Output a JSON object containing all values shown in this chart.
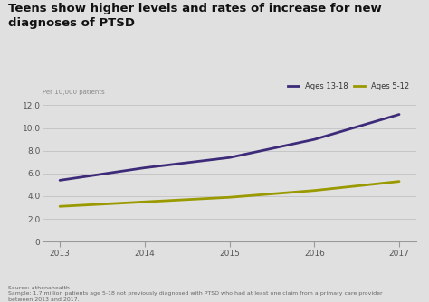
{
  "title": "Teens show higher levels and rates of increase for new\ndiagnoses of PTSD",
  "title_fontsize": 9.5,
  "ylabel": "Per 10,000 patients",
  "ylabel_fontsize": 5,
  "background_color": "#e0e0e0",
  "plot_bg_color": "#e0e0e0",
  "years": [
    2013,
    2014,
    2015,
    2016,
    2017
  ],
  "ages_13_18": [
    5.4,
    6.5,
    7.4,
    9.0,
    11.2
  ],
  "ages_5_12": [
    3.1,
    3.5,
    3.9,
    4.5,
    5.3
  ],
  "color_13_18": "#3d2b7a",
  "color_5_12": "#9a9a00",
  "line_width": 2.0,
  "ylim": [
    0,
    12.5
  ],
  "yticks": [
    0,
    2.0,
    4.0,
    6.0,
    8.0,
    10.0,
    12.0
  ],
  "xticks": [
    2013,
    2014,
    2015,
    2016,
    2017
  ],
  "legend_label_13_18": "Ages 13-18",
  "legend_label_5_12": "Ages 5-12",
  "source_text": "Source: athenahealth\nSample: 1.7 million patients age 5-18 not previously diagnosed with PTSD who had at least one claim from a primary care provider\nbetween 2013 and 2017.",
  "source_fontsize": 4.5,
  "tick_fontsize": 6.5,
  "legend_fontsize": 6.0
}
